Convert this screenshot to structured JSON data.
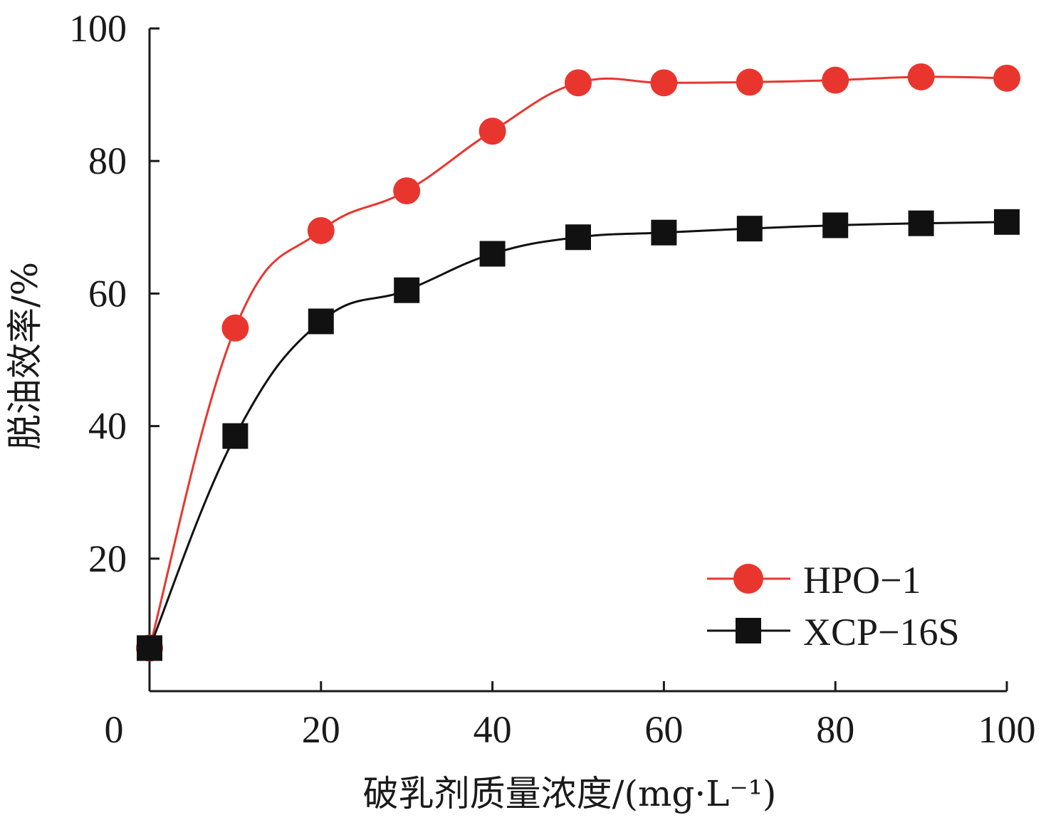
{
  "chart_data": {
    "type": "line",
    "xlabel": "破乳剂质量浓度/(mg·L⁻¹)",
    "ylabel": "脱油效率/%",
    "xlim": [
      0,
      100
    ],
    "ylim": [
      0,
      100
    ],
    "x_ticks": [
      0,
      20,
      40,
      60,
      80,
      100
    ],
    "y_ticks": [
      20,
      40,
      60,
      80,
      100
    ],
    "x_tick_labels": [
      "0",
      "20",
      "40",
      "60",
      "80",
      "100"
    ],
    "y_tick_labels": [
      "20",
      "40",
      "60",
      "80",
      "100"
    ],
    "legend_position": "bottom-right",
    "series": [
      {
        "name": "HPO−1",
        "color": "#e8362f",
        "marker": "circle",
        "x": [
          0,
          10,
          20,
          30,
          40,
          50,
          60,
          70,
          80,
          90,
          100
        ],
        "y": [
          6.5,
          54.8,
          69.5,
          75.5,
          84.5,
          91.8,
          91.8,
          91.9,
          92.2,
          92.7,
          92.5
        ]
      },
      {
        "name": "XCP−16S",
        "color": "#111111",
        "marker": "square",
        "x": [
          0,
          10,
          20,
          30,
          40,
          50,
          60,
          70,
          80,
          90,
          100
        ],
        "y": [
          6.5,
          38.5,
          55.8,
          60.5,
          66.0,
          68.5,
          69.2,
          69.8,
          70.3,
          70.6,
          70.8
        ]
      }
    ]
  }
}
